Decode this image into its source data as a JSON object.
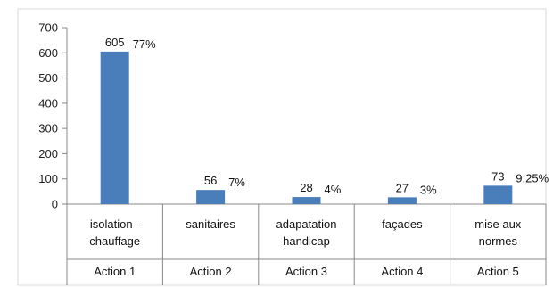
{
  "chart_data": {
    "type": "bar",
    "title": "",
    "xlabel": "",
    "ylabel": "",
    "ylim": [
      0,
      700
    ],
    "yticks": [
      0,
      100,
      200,
      300,
      400,
      500,
      600,
      700
    ],
    "grid": false,
    "legend": "none",
    "bar_color": "#4a7ebb",
    "categories": [
      {
        "lines": [
          "isolation -",
          "chauffage"
        ],
        "group": "Action 1"
      },
      {
        "lines": [
          "sanitaires"
        ],
        "group": "Action 2"
      },
      {
        "lines": [
          "adapatation",
          "handicap"
        ],
        "group": "Action 3"
      },
      {
        "lines": [
          "façades"
        ],
        "group": "Action 4"
      },
      {
        "lines": [
          "mise aux",
          "normes"
        ],
        "group": "Action 5"
      }
    ],
    "values": [
      605,
      56,
      28,
      27,
      73
    ],
    "value_labels": [
      "605",
      "56",
      "28",
      "27",
      "73"
    ],
    "percent_labels": [
      "77%",
      "7%",
      "4%",
      "3%",
      "9,25%"
    ]
  }
}
